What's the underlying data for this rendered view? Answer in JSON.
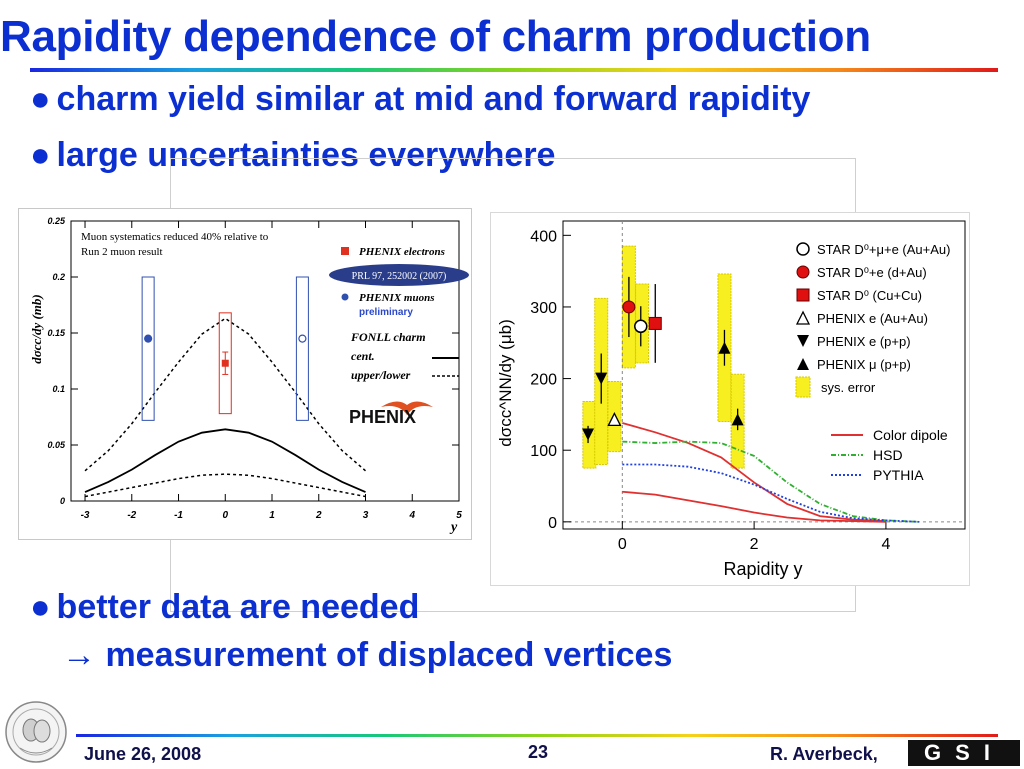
{
  "slide": {
    "title": "Rapidity dependence of charm production",
    "bullets": [
      "charm yield similar at mid and forward rapidity",
      "large uncertainties everywhere",
      "better data are needed"
    ],
    "sub_bullet": "measurement of displaced vertices",
    "arrow_glyph": "→",
    "footer": {
      "date": "June 26, 2008",
      "page": "23",
      "author": "R. Averbeck,",
      "logo_text": "GSI"
    },
    "colors": {
      "title": "#0b2fd1",
      "footer_text": "#10104a"
    }
  },
  "chart_data": [
    {
      "type": "scatter",
      "title": "",
      "xlabel": "y",
      "ylabel": "dσcc/dy (mb)",
      "xlim": [
        -3.3,
        5
      ],
      "ylim": [
        0,
        0.25
      ],
      "xticks": [
        "-3",
        "-2",
        "-1",
        "0",
        "1",
        "2",
        "3",
        "4",
        "5"
      ],
      "yticks": [
        "0",
        "0.05",
        "0.1",
        "0.15",
        "0.2",
        "0.25"
      ],
      "annotations": [
        "Muon systematics reduced 40% relative to",
        "Run 2 muon result",
        "PRL 97, 252002 (2007)",
        "preliminary",
        "FONLL charm",
        "cent.",
        "upper/lower",
        "PHENIX"
      ],
      "legend": [
        "PHENIX electrons",
        "PHENIX muons"
      ],
      "series": [
        {
          "name": "PHENIX electrons",
          "color": "#e03020",
          "marker": "square",
          "points": [
            {
              "x": 0,
              "y": 0.123,
              "err": 0.01,
              "sys_low": 0.078,
              "sys_high": 0.168
            }
          ]
        },
        {
          "name": "PHENIX muons",
          "color": "#3050b0",
          "marker": "circle",
          "points": [
            {
              "x": -1.65,
              "y": 0.145,
              "sys_low": 0.072,
              "sys_high": 0.2
            },
            {
              "x": 1.65,
              "y": 0.145,
              "open": true,
              "sys_low": 0.072,
              "sys_high": 0.2
            }
          ]
        }
      ],
      "curves": [
        {
          "label": "FONLL charm cent.",
          "style": "solid",
          "x": [
            -3,
            -2.5,
            -2,
            -1.5,
            -1,
            -0.5,
            0,
            0.5,
            1,
            1.5,
            2,
            2.5,
            3
          ],
          "y": [
            0.008,
            0.017,
            0.028,
            0.041,
            0.053,
            0.061,
            0.064,
            0.061,
            0.053,
            0.041,
            0.028,
            0.017,
            0.008
          ]
        },
        {
          "label": "FONLL charm upper",
          "style": "dashed",
          "x": [
            -3,
            -2.5,
            -2,
            -1.5,
            -1,
            -0.5,
            0,
            0.5,
            1,
            1.5,
            2,
            2.5,
            3
          ],
          "y": [
            0.027,
            0.045,
            0.069,
            0.097,
            0.124,
            0.149,
            0.163,
            0.149,
            0.124,
            0.097,
            0.069,
            0.045,
            0.027
          ]
        },
        {
          "label": "FONLL charm lower",
          "style": "dashed",
          "x": [
            -3,
            -2.5,
            -2,
            -1.5,
            -1,
            -0.5,
            0,
            0.5,
            1,
            1.5,
            2,
            2.5,
            3
          ],
          "y": [
            0.004,
            0.008,
            0.012,
            0.016,
            0.02,
            0.023,
            0.024,
            0.023,
            0.02,
            0.016,
            0.012,
            0.008,
            0.004
          ]
        }
      ]
    },
    {
      "type": "scatter",
      "title": "",
      "xlabel": "Rapidity y",
      "ylabel": "dσcc^NN/dy (μb)",
      "xlim": [
        -0.9,
        5.2
      ],
      "ylim": [
        -10,
        420
      ],
      "xticks": [
        "0",
        "2",
        "4"
      ],
      "yticks": [
        "0",
        "100",
        "200",
        "300",
        "400"
      ],
      "legend": [
        "STAR D⁰+μ+e (Au+Au)",
        "STAR D⁰+e (d+Au)",
        "STAR D⁰ (Cu+Cu)",
        "PHENIX e (Au+Au)",
        "PHENIX e (p+p)",
        "PHENIX μ (p+p)",
        "sys. error",
        "Color dipole",
        "HSD",
        "PYTHIA"
      ],
      "sys_boxes": [
        {
          "x": -0.5,
          "low": 75,
          "high": 168
        },
        {
          "x": -0.32,
          "low": 80,
          "high": 312
        },
        {
          "x": -0.12,
          "low": 98,
          "high": 196
        },
        {
          "x": 0.1,
          "low": 215,
          "high": 385
        },
        {
          "x": 0.3,
          "low": 222,
          "high": 332
        },
        {
          "x": 1.55,
          "low": 140,
          "high": 346
        },
        {
          "x": 1.75,
          "low": 75,
          "high": 206
        }
      ],
      "series": [
        {
          "name": "STAR D⁰+μ+e (Au+Au)",
          "marker": "open-circle",
          "color": "#000000",
          "points": [
            {
              "x": 0.28,
              "y": 273,
              "err": 28
            }
          ]
        },
        {
          "name": "STAR D⁰+e (d+Au)",
          "marker": "filled-circle",
          "color": "#e01010",
          "points": [
            {
              "x": 0.1,
              "y": 300,
              "err": 42
            }
          ]
        },
        {
          "name": "STAR D⁰ (Cu+Cu)",
          "marker": "filled-square",
          "color": "#e01010",
          "points": [
            {
              "x": 0.5,
              "y": 277,
              "err": 55
            }
          ]
        },
        {
          "name": "PHENIX e (Au+Au)",
          "marker": "open-triangle",
          "color": "#000000",
          "points": [
            {
              "x": -0.12,
              "y": 143,
              "err": 8
            }
          ]
        },
        {
          "name": "PHENIX e (p+p)",
          "marker": "down-triangle",
          "color": "#000000",
          "points": [
            {
              "x": -0.52,
              "y": 122,
              "err": 12
            },
            {
              "x": -0.32,
              "y": 200,
              "err": 35
            }
          ]
        },
        {
          "name": "PHENIX μ (p+p)",
          "marker": "up-triangle",
          "color": "#000000",
          "points": [
            {
              "x": 1.55,
              "y": 243,
              "err": 25
            },
            {
              "x": 1.75,
              "y": 143,
              "err": 15
            }
          ]
        }
      ],
      "curves": [
        {
          "name": "Color dipole",
          "style": "solid",
          "color": "#e03030",
          "x": [
            0,
            0.5,
            1,
            1.5,
            2,
            2.5,
            3,
            3.5,
            4
          ],
          "y": [
            138,
            125,
            110,
            90,
            55,
            25,
            8,
            3,
            1
          ]
        },
        {
          "name": "Color dipole",
          "style": "solid",
          "color": "#e03030",
          "x": [
            0,
            0.5,
            1,
            1.5,
            2,
            2.5,
            3,
            3.5,
            4
          ],
          "y": [
            42,
            38,
            30,
            22,
            13,
            6,
            2,
            1,
            0
          ]
        },
        {
          "name": "HSD",
          "style": "dash-dot",
          "color": "#30b030",
          "x": [
            0,
            0.5,
            1,
            1.5,
            2,
            2.5,
            3,
            3.5,
            4,
            4.5
          ],
          "y": [
            112,
            110,
            112,
            110,
            92,
            55,
            25,
            8,
            2,
            0
          ]
        },
        {
          "name": "PYTHIA",
          "style": "dotted",
          "color": "#2040e0",
          "x": [
            0,
            0.5,
            1,
            1.5,
            2,
            2.5,
            3,
            3.5,
            4,
            4.5
          ],
          "y": [
            80,
            80,
            77,
            68,
            52,
            32,
            14,
            5,
            2,
            0
          ]
        }
      ]
    }
  ]
}
